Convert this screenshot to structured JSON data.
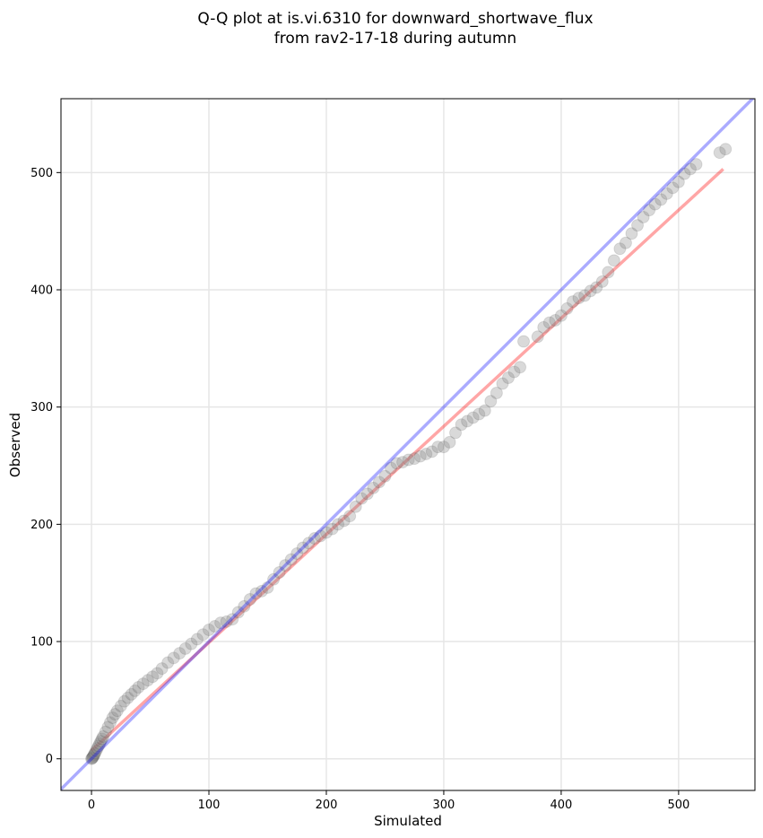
{
  "chart_data": {
    "type": "scatter",
    "title_lines": [
      "Q-Q plot at is.vi.6310 for downward_shortwave_flux",
      "from rav2-17-18 during autumn"
    ],
    "xlabel": "Simulated",
    "ylabel": "Observed",
    "xlim": [
      -26,
      565
    ],
    "ylim": [
      -27,
      563
    ],
    "xticks": [
      0,
      100,
      200,
      300,
      400,
      500
    ],
    "yticks": [
      0,
      100,
      200,
      300,
      400,
      500
    ],
    "grid": true,
    "colors": {
      "points": "#808080",
      "points_edge": "#000000",
      "one_to_one_line": "#0000ff",
      "fit_line": "#ff0000",
      "grid": "#e6e6e6"
    },
    "one_to_one_line": {
      "x": [
        -26,
        565
      ],
      "y": [
        -26,
        565
      ]
    },
    "fit_line": {
      "x": [
        0,
        538
      ],
      "y": [
        7,
        503
      ]
    },
    "points": {
      "x": [
        0,
        0.5,
        1,
        1.5,
        2,
        2.5,
        3,
        4,
        5,
        6,
        7,
        8,
        9,
        10,
        12,
        14,
        16,
        18,
        20,
        22,
        25,
        28,
        31,
        34,
        37,
        40,
        44,
        48,
        52,
        56,
        60,
        65,
        70,
        75,
        80,
        85,
        90,
        95,
        100,
        105,
        110,
        115,
        120,
        125,
        130,
        135,
        140,
        145,
        150,
        155,
        160,
        165,
        170,
        175,
        180,
        185,
        190,
        195,
        200,
        205,
        210,
        215,
        220,
        225,
        230,
        235,
        240,
        245,
        250,
        255,
        260,
        265,
        270,
        275,
        280,
        285,
        290,
        295,
        300,
        305,
        310,
        315,
        320,
        325,
        330,
        335,
        340,
        345,
        350,
        355,
        360,
        365,
        368,
        380,
        385,
        390,
        395,
        400,
        405,
        410,
        415,
        420,
        425,
        430,
        435,
        440,
        445,
        450,
        455,
        460,
        465,
        470,
        475,
        480,
        485,
        490,
        495,
        500,
        505,
        510,
        515,
        535,
        540
      ],
      "y": [
        0,
        0.5,
        1,
        2,
        3,
        4,
        5,
        7,
        9,
        11,
        13,
        15,
        17,
        19,
        23,
        27,
        31,
        35,
        38,
        41,
        45,
        49,
        52,
        55,
        58,
        61,
        64,
        67,
        70,
        73,
        77,
        82,
        86,
        90,
        94,
        98,
        102,
        106,
        110,
        113,
        116,
        117,
        119,
        125,
        130,
        136,
        141,
        143,
        146,
        153,
        159,
        165,
        170,
        175,
        180,
        184,
        188,
        190,
        193,
        196,
        200,
        203,
        207,
        215,
        222,
        226,
        231,
        236,
        241,
        248,
        252,
        253,
        255,
        256,
        258,
        260,
        262,
        266,
        266,
        270,
        278,
        285,
        288,
        291,
        294,
        297,
        305,
        312,
        320,
        325,
        330,
        334,
        356,
        360,
        368,
        372,
        374,
        378,
        384,
        390,
        393,
        395,
        399,
        402,
        407,
        415,
        425,
        435,
        440,
        448,
        455,
        462,
        468,
        473,
        477,
        482,
        487,
        492,
        499,
        503,
        507,
        517,
        520
      ]
    }
  }
}
